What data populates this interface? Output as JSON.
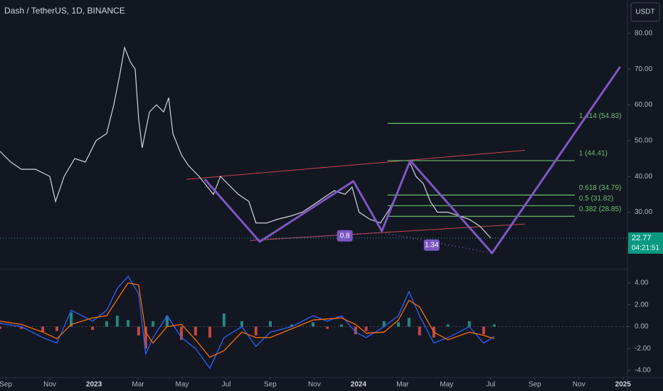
{
  "header": {
    "title": "Dash / TetherUS, 1D, BINANCE",
    "currency": "USDT",
    "countdown": "04:21:51"
  },
  "chart_data": [
    {
      "type": "line",
      "xlim": [
        -0.26,
        28.2
      ],
      "ylim": [
        14.2,
        89.3
      ],
      "yticks": [
        {
          "value": 80,
          "label": "80.00"
        },
        {
          "value": 70,
          "label": "70.00"
        },
        {
          "value": 60,
          "label": "60.00"
        },
        {
          "value": 50,
          "label": "50.00"
        },
        {
          "value": 40,
          "label": "40.00"
        },
        {
          "value": 30,
          "label": "30.00"
        }
      ],
      "last_price": 22.77,
      "series": [
        {
          "color": "#d1d4dc",
          "x": [
            -0.26,
            0.23,
            0.71,
            1.35,
            2.0,
            2.26,
            2.65,
            3.13,
            3.61,
            4.1,
            4.58,
            4.9,
            5.16,
            5.39,
            5.65,
            5.87,
            6.03,
            6.19,
            6.52,
            6.84,
            7.16,
            7.39,
            7.58,
            7.97,
            8.29,
            8.77,
            9.16,
            9.42,
            9.74,
            10.06,
            10.55,
            11.03,
            11.35,
            11.84,
            12.32,
            12.97,
            13.45,
            13.94,
            14.42,
            14.9,
            15.39,
            15.71,
            16.03,
            16.52,
            17.0,
            17.42,
            17.81,
            18.06,
            18.32,
            18.61,
            18.94,
            19.26,
            19.58,
            20.06,
            20.55,
            21.03,
            21.52,
            22.0
          ],
          "values": [
            47,
            44,
            42,
            42,
            40,
            33,
            40,
            45,
            44,
            50,
            52,
            60,
            68,
            76,
            72,
            70,
            56,
            48,
            58,
            60,
            58,
            62,
            52,
            46,
            43,
            40,
            37,
            35,
            40,
            38,
            35,
            33,
            27,
            27,
            28,
            29,
            30,
            32,
            34,
            36,
            35,
            37,
            30,
            28,
            27,
            31,
            36,
            40,
            44,
            40,
            38,
            33,
            30,
            30,
            29,
            28,
            26,
            22.77
          ]
        }
      ],
      "pattern": {
        "color": "#7e57c2",
        "x": [
          9.03,
          11.52,
          15.77,
          17.06,
          18.35,
          22.06,
          27.87
        ],
        "values": [
          39.2,
          21.75,
          38.65,
          24.73,
          44.4,
          18.57,
          70.66
        ]
      },
      "trendlines": [
        {
          "color": "#c2474f",
          "x": [
            8.19,
            23.55
          ],
          "values": [
            39.2,
            47.3
          ]
        },
        {
          "color": "#c2474f",
          "x": [
            11.1,
            23.55
          ],
          "values": [
            22.1,
            26.7
          ]
        }
      ],
      "dotted": {
        "color": "#7e57c2",
        "x": [
          11.1,
          17.06,
          22.06
        ],
        "values": [
          22.1,
          24.3,
          18.57
        ]
      },
      "ratios": [
        {
          "label": "0.8",
          "x": 15.38,
          "value": 23.4
        },
        {
          "label": "1.34",
          "x": 19.32,
          "value": 20.8
        }
      ],
      "fib_color": "#6abf69",
      "fib_x": [
        17.32,
        25.81
      ],
      "fib_levels": [
        {
          "label": "1.414 (54.83)",
          "value": 54.83
        },
        {
          "label": "1 (44.41)",
          "value": 44.41
        },
        {
          "label": "0.618 (34.79)",
          "value": 34.79
        },
        {
          "label": "0.5 (31.82)",
          "value": 31.82
        },
        {
          "label": "0.382 (28.85)",
          "value": 28.85
        }
      ]
    },
    {
      "type": "macd",
      "xlim": [
        -0.26,
        28.2
      ],
      "ylim": [
        -4.58,
        5.16
      ],
      "yticks": [
        {
          "value": 4,
          "label": "4.00"
        },
        {
          "value": 2,
          "label": "2.00"
        },
        {
          "value": 0,
          "label": "0.00"
        },
        {
          "value": -2,
          "label": "-2.00"
        },
        {
          "value": -4,
          "label": "-4.00"
        }
      ],
      "xticks": [
        {
          "value": 0,
          "label": "Sep"
        },
        {
          "value": 2,
          "label": "Nov"
        },
        {
          "value": 4,
          "label": "2023"
        },
        {
          "value": 6,
          "label": "Mar"
        },
        {
          "value": 8,
          "label": "May"
        },
        {
          "value": 10,
          "label": "Jul"
        },
        {
          "value": 12,
          "label": "Sep"
        },
        {
          "value": 14,
          "label": "Nov"
        },
        {
          "value": 16,
          "label": "2024"
        },
        {
          "value": 18,
          "label": "Mar"
        },
        {
          "value": 20,
          "label": "May"
        },
        {
          "value": 22,
          "label": "Jul"
        },
        {
          "value": 24,
          "label": "Sep"
        },
        {
          "value": 26,
          "label": "Nov"
        },
        {
          "value": 28,
          "label": "2025"
        }
      ],
      "x": [
        -0.26,
        0.71,
        1.68,
        2.32,
        2.97,
        3.94,
        4.58,
        5.06,
        5.55,
        6.03,
        6.35,
        6.68,
        7.32,
        7.97,
        8.61,
        9.26,
        9.9,
        10.71,
        11.35,
        12.0,
        12.97,
        13.94,
        14.58,
        15.23,
        15.87,
        16.35,
        17.16,
        17.81,
        18.29,
        18.77,
        19.42,
        20.06,
        21.03,
        21.68,
        22.16
      ],
      "series": [
        {
          "color": "#2962ff",
          "values": [
            0.3,
            0,
            -1,
            -1.5,
            1.5,
            0.5,
            1.5,
            3.5,
            4.6,
            3,
            -2.5,
            -1,
            1,
            -1,
            -2,
            -3.8,
            -1,
            0,
            -1.8,
            -0.5,
            0,
            1,
            0.5,
            1,
            -0.5,
            -1,
            0,
            1,
            3.2,
            1,
            -1.5,
            -1,
            0,
            -1.5,
            -0.9
          ]
        },
        {
          "color": "#ff6d00",
          "values": [
            0.5,
            0.2,
            -0.5,
            -1.1,
            0.2,
            0.8,
            1.0,
            2.5,
            4.0,
            3.8,
            -0.5,
            -1.5,
            0,
            0.2,
            -1.2,
            -2.8,
            -2.2,
            -0.5,
            -1.0,
            -1.0,
            -0.2,
            0.6,
            0.7,
            0.8,
            0.2,
            -0.6,
            -0.5,
            0.6,
            2.4,
            1.8,
            -0.5,
            -1.2,
            -0.5,
            -0.8,
            -1.1
          ]
        }
      ],
      "histogram": {
        "up_color": "#26a69a",
        "down_color": "#ef5350",
        "values": [
          -0.2,
          -0.2,
          -0.5,
          -0.4,
          1.3,
          -0.3,
          0.5,
          1.0,
          0.6,
          -0.8,
          -2.0,
          0.5,
          1.0,
          -1.2,
          -0.8,
          -1.0,
          1.2,
          0.5,
          -0.8,
          0.5,
          0.2,
          0.4,
          -0.2,
          0.2,
          -0.7,
          -0.4,
          0.5,
          0.4,
          0.8,
          -0.8,
          -1.0,
          0.2,
          0.5,
          -0.7,
          0.2
        ]
      }
    }
  ]
}
